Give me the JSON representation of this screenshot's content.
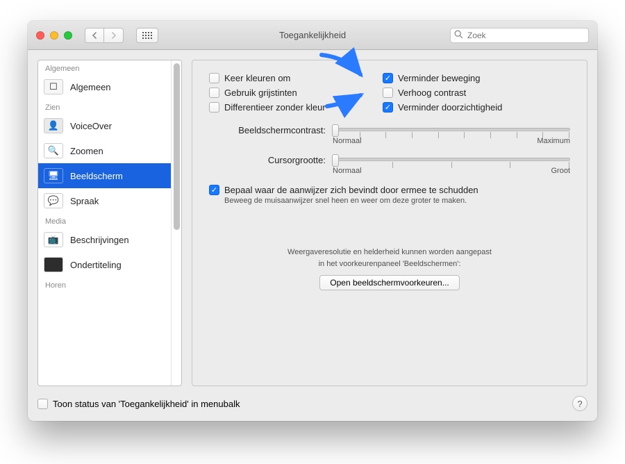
{
  "window": {
    "title": "Toegankelijkheid",
    "search_placeholder": "Zoek"
  },
  "sidebar": {
    "groups": [
      {
        "label": "Algemeen",
        "items": [
          {
            "key": "general",
            "label": "Algemeen",
            "icon_bg": "#f6f6f6",
            "icon_glyph": "☐",
            "selected": false
          }
        ]
      },
      {
        "label": "Zien",
        "items": [
          {
            "key": "voiceover",
            "label": "VoiceOver",
            "icon_bg": "#e9e9e9",
            "icon_glyph": "👤",
            "selected": false
          },
          {
            "key": "zoom",
            "label": "Zoomen",
            "icon_bg": "#ffffff",
            "icon_glyph": "🔍",
            "selected": false
          },
          {
            "key": "display",
            "label": "Beeldscherm",
            "icon_bg": "#1a63e0",
            "icon_glyph": "🖥",
            "selected": true
          },
          {
            "key": "speech",
            "label": "Spraak",
            "icon_bg": "#ffffff",
            "icon_glyph": "💬",
            "selected": false
          }
        ]
      },
      {
        "label": "Media",
        "items": [
          {
            "key": "descriptions",
            "label": "Beschrijvingen",
            "icon_bg": "#ffffff",
            "icon_glyph": "📺",
            "selected": false
          },
          {
            "key": "captions",
            "label": "Ondertiteling",
            "icon_bg": "#2d2d2d",
            "icon_glyph": "···",
            "selected": false
          }
        ]
      },
      {
        "label": "Horen",
        "items": []
      }
    ]
  },
  "panel": {
    "checks_left": [
      {
        "key": "invert",
        "label": "Keer kleuren om",
        "checked": false
      },
      {
        "key": "grayscale",
        "label": "Gebruik grijstinten",
        "checked": false
      },
      {
        "key": "diffcolor",
        "label": "Differentieer zonder kleur",
        "checked": false
      }
    ],
    "checks_right": [
      {
        "key": "reducemotion",
        "label": "Verminder beweging",
        "checked": true
      },
      {
        "key": "increasecontrast",
        "label": "Verhoog contrast",
        "checked": false
      },
      {
        "key": "reducetransparency",
        "label": "Verminder doorzichtigheid",
        "checked": true
      }
    ],
    "sliders": [
      {
        "key": "contrast",
        "label": "Beeldschermcontrast:",
        "min_label": "Normaal",
        "max_label": "Maximum",
        "value": 0,
        "ticks": 10
      },
      {
        "key": "cursor",
        "label": "Cursorgrootte:",
        "min_label": "Normaal",
        "max_label": "Groot",
        "value": 0,
        "ticks": 5
      }
    ],
    "shake": {
      "checked": true,
      "label": "Bepaal waar de aanwijzer zich bevindt door ermee te schudden",
      "hint": "Beweeg de muisaanwijzer snel heen en weer om deze groter te maken."
    },
    "footer_line1": "Weergaveresolutie en helderheid kunnen worden aangepast",
    "footer_line2": "in het voorkeurenpaneel 'Beeldschermen':",
    "open_button": "Open beeldschermvoorkeuren..."
  },
  "bottom": {
    "status_checkbox_label": "Toon status van 'Toegankelijkheid' in menubalk",
    "status_checked": false
  },
  "style": {
    "accent": "#1878ff",
    "selection": "#1a63e0",
    "arrow_color": "#2a7bff"
  }
}
